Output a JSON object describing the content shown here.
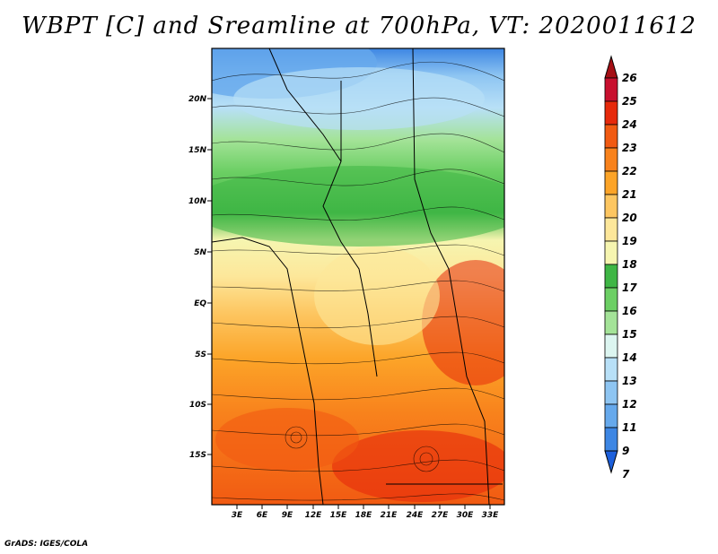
{
  "title": "WBPT [C] and Sreamline at 700hPa, VT: 2020011612",
  "footer": "GrADS: IGES/COLA",
  "map": {
    "lat_labels": [
      "20N",
      "15N",
      "10N",
      "5N",
      "EQ",
      "5S",
      "10S",
      "15S"
    ],
    "lon_labels": [
      "3E",
      "6E",
      "9E",
      "12E",
      "15E",
      "18E",
      "21E",
      "24E",
      "27E",
      "30E",
      "33E"
    ],
    "field": "wet-bulb potential temperature",
    "overlay": "streamlines"
  },
  "colorbar": {
    "labels": [
      "26",
      "25",
      "24",
      "23",
      "22",
      "21",
      "20",
      "19",
      "18",
      "17",
      "16",
      "15",
      "14",
      "13",
      "12",
      "11",
      "9",
      "7"
    ],
    "colors": [
      "#a50f15",
      "#c8102e",
      "#e6290b",
      "#f15a12",
      "#f8821c",
      "#fca428",
      "#fdc661",
      "#fde79a",
      "#f6f5b0",
      "#3fb645",
      "#6ccf64",
      "#a4e398",
      "#dcf5f0",
      "#b8e0f7",
      "#8ec5f2",
      "#66a9ec",
      "#3d86e3",
      "#1c5fdb"
    ]
  },
  "colors": {
    "frame": "#000000"
  }
}
